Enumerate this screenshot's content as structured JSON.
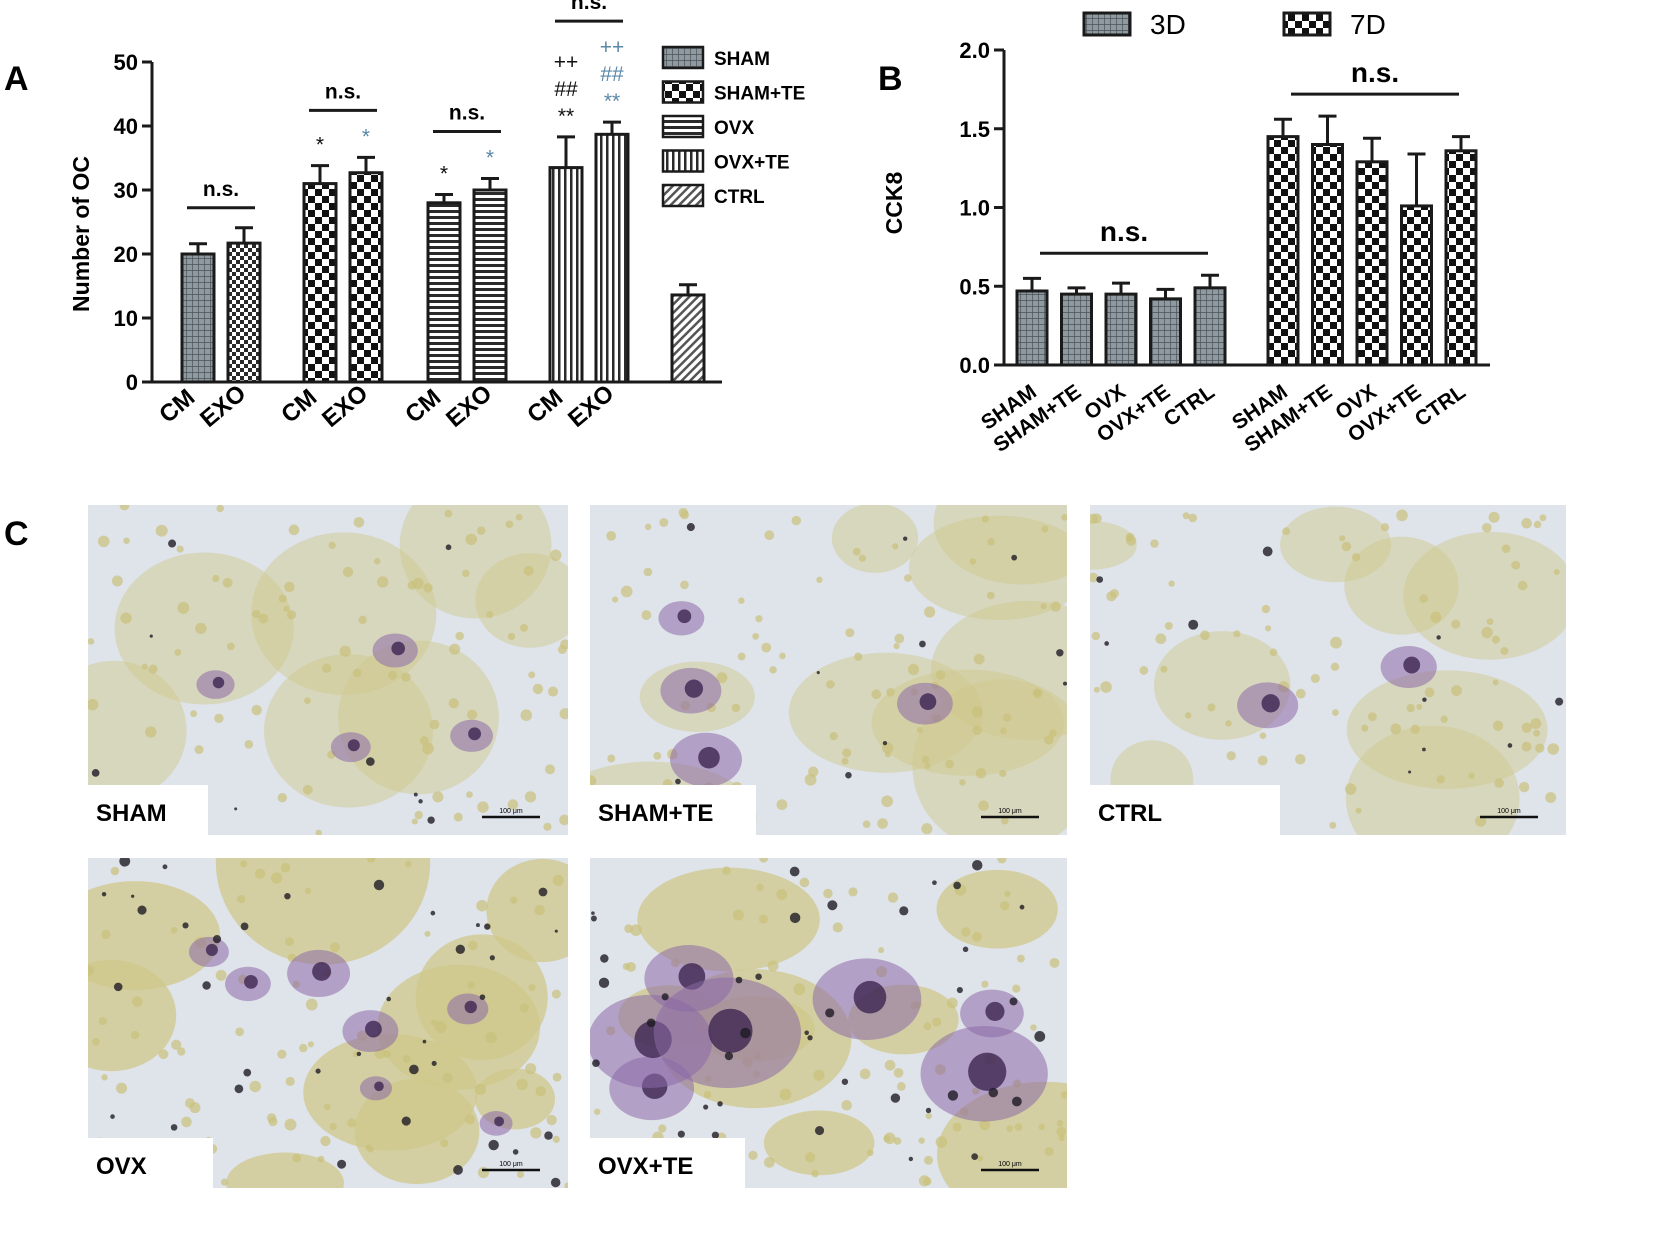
{
  "panel_labels": {
    "a": "A",
    "b": "B",
    "c": "C"
  },
  "colors": {
    "axis": "#1a1a1a",
    "bar_fill": "#8e9aa0",
    "sig_blue": "#5a88a8",
    "photo_bg": "#dfe3ea",
    "cell_yellow": "#cfc88a",
    "stain_purple": "#8d6aa8"
  },
  "chart_data": [
    {
      "type": "bar",
      "panel": "A",
      "ylabel": "Number of OC",
      "ylim": [
        0,
        50
      ],
      "yticks": [
        "0",
        "10",
        "20",
        "30",
        "40",
        "50"
      ],
      "legend": {
        "placement": "top-right",
        "entries": [
          {
            "name": "SHAM",
            "pattern": "dark-grid"
          },
          {
            "name": "SHAM+TE",
            "pattern": "small-check"
          },
          {
            "name": "OVX",
            "pattern": "horizontal-stripes"
          },
          {
            "name": "OVX+TE",
            "pattern": "vertical-stripes"
          },
          {
            "name": "CTRL",
            "pattern": "diagonal-hatch"
          }
        ]
      },
      "groups": [
        {
          "name": "SHAM",
          "bars": [
            {
              "label": "CM",
              "value": 20,
              "error": 1.6,
              "marks": []
            },
            {
              "label": "EXO",
              "value": 21.7,
              "error": 2.4,
              "marks": []
            }
          ],
          "sig": "n.s."
        },
        {
          "name": "SHAM+TE",
          "bars": [
            {
              "label": "CM",
              "value": 31,
              "error": 2.8,
              "marks": [
                {
                  "text": "*",
                  "color": "black"
                }
              ]
            },
            {
              "label": "EXO",
              "value": 32.7,
              "error": 2.4,
              "marks": [
                {
                  "text": "*",
                  "color": "blue"
                }
              ]
            }
          ],
          "sig": "n.s."
        },
        {
          "name": "OVX",
          "bars": [
            {
              "label": "CM",
              "value": 28,
              "error": 1.3,
              "marks": [
                {
                  "text": "*",
                  "color": "black"
                }
              ]
            },
            {
              "label": "EXO",
              "value": 30,
              "error": 1.8,
              "marks": [
                {
                  "text": "*",
                  "color": "blue"
                }
              ]
            }
          ],
          "sig": "n.s."
        },
        {
          "name": "OVX+TE",
          "bars": [
            {
              "label": "CM",
              "value": 33.5,
              "error": 4.8,
              "marks": [
                {
                  "text": "++",
                  "color": "black"
                },
                {
                  "text": "##",
                  "color": "black"
                },
                {
                  "text": "**",
                  "color": "black"
                }
              ]
            },
            {
              "label": "EXO",
              "value": 38.7,
              "error": 1.9,
              "marks": [
                {
                  "text": "++",
                  "color": "blue"
                },
                {
                  "text": "##",
                  "color": "blue"
                },
                {
                  "text": "**",
                  "color": "blue"
                }
              ]
            }
          ],
          "sig": "n.s."
        },
        {
          "name": "CTRL",
          "bars": [
            {
              "label": "",
              "value": 13.6,
              "error": 1.6,
              "marks": []
            }
          ],
          "sig": ""
        }
      ]
    },
    {
      "type": "bar",
      "panel": "B",
      "ylabel": "CCK8",
      "ylim": [
        0,
        2.0
      ],
      "yticks": [
        "0.0",
        "0.5",
        "1.0",
        "1.5",
        "2.0"
      ],
      "legend": {
        "placement": "top",
        "entries": [
          {
            "name": "3D",
            "pattern": "dark-grid"
          },
          {
            "name": "7D",
            "pattern": "small-check"
          }
        ]
      },
      "categories": [
        "SHAM",
        "SHAM+TE",
        "OVX",
        "OVX+TE",
        "CTRL"
      ],
      "series": [
        {
          "name": "3D",
          "values": [
            0.47,
            0.45,
            0.45,
            0.42,
            0.49
          ],
          "errors": [
            0.08,
            0.04,
            0.07,
            0.06,
            0.08
          ],
          "sig": "n.s."
        },
        {
          "name": "7D",
          "values": [
            1.45,
            1.4,
            1.29,
            1.01,
            1.36
          ],
          "errors": [
            0.11,
            0.18,
            0.15,
            0.33,
            0.09
          ],
          "sig": "n.s."
        }
      ]
    }
  ],
  "photos": [
    {
      "label": "SHAM",
      "scale": "100 μm"
    },
    {
      "label": "SHAM+TE",
      "scale": "100 μm"
    },
    {
      "label": "CTRL",
      "scale": "100 μm"
    },
    {
      "label": "OVX",
      "scale": "100 μm"
    },
    {
      "label": "OVX+TE",
      "scale": "100 μm"
    }
  ]
}
